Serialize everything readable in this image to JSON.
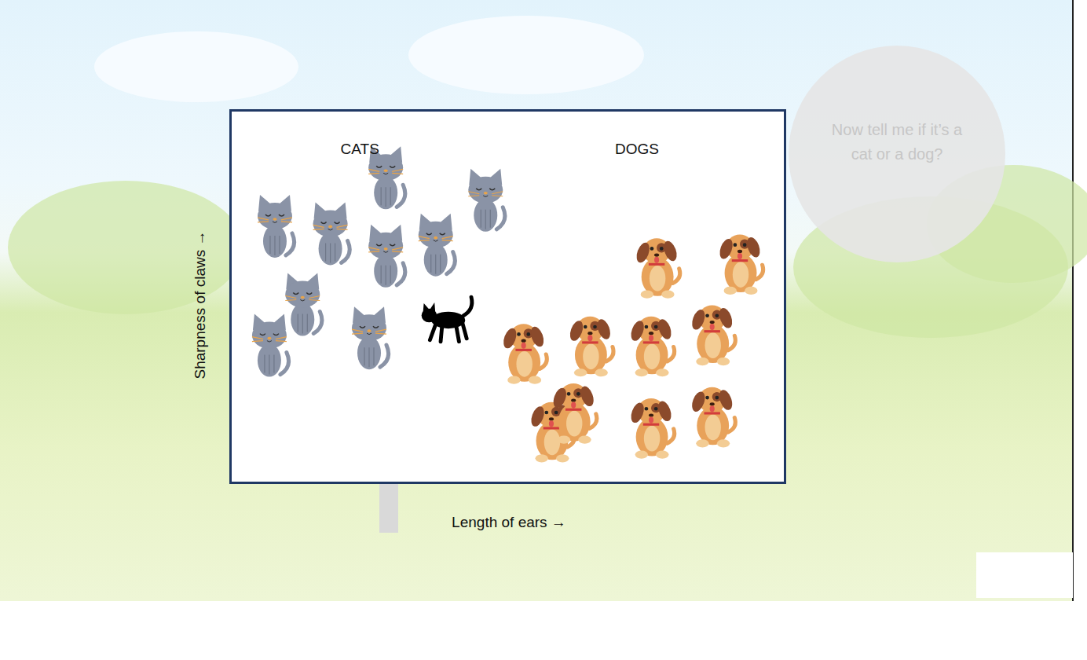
{
  "chart_data": {
    "type": "scatter",
    "xlabel": "Length of ears →",
    "ylabel": "Sharpness of claws →",
    "xlim": [
      0,
      100
    ],
    "ylim": [
      0,
      100
    ],
    "tick_labels": false,
    "annotations": [
      "Now tell me if it’s a cat or a dog?"
    ],
    "series": [
      {
        "name": "CATS",
        "color": "#8a93a6",
        "marker": "cat",
        "x": [
          8,
          18,
          28,
          28,
          37,
          46,
          13,
          7,
          25
        ],
        "y": [
          69,
          67,
          82,
          61,
          64,
          76,
          48,
          37,
          39
        ]
      },
      {
        "name": "DOGS",
        "color": "#e8a25a",
        "marker": "dog",
        "x": [
          77,
          92,
          53,
          65,
          76,
          87,
          58,
          62,
          76,
          87
        ],
        "y": [
          59,
          60,
          36,
          38,
          38,
          41,
          15,
          20,
          16,
          19
        ]
      },
      {
        "color": "#000000",
        "marker": "black_cat",
        "x": [
          39
        ],
        "y": [
          44
        ]
      }
    ]
  }
}
